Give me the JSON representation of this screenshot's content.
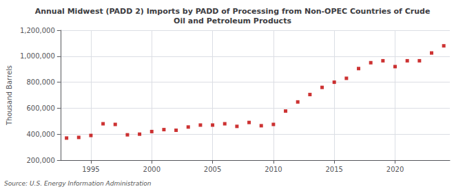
{
  "chart_data": {
    "type": "scatter",
    "title": "Annual Midwest (PADD 2) Imports by PADD of Processing from Non-OPEC Countries of Crude\nOil and Petroleum Products",
    "ylabel": "Thousand Barrels",
    "source": "Source: U.S. Energy Information Administration",
    "color": "#C00000",
    "marker": "square",
    "x": [
      1993,
      1994,
      1995,
      1996,
      1997,
      1998,
      1999,
      2000,
      2001,
      2002,
      2003,
      2004,
      2005,
      2006,
      2007,
      2008,
      2009,
      2010,
      2011,
      2012,
      2013,
      2014,
      2015,
      2016,
      2017,
      2018,
      2019,
      2020,
      2021,
      2022,
      2023,
      2024
    ],
    "values": [
      370000,
      375000,
      390000,
      480000,
      475000,
      395000,
      400000,
      420000,
      435000,
      430000,
      455000,
      470000,
      470000,
      480000,
      460000,
      490000,
      465000,
      475000,
      578000,
      648000,
      705000,
      760000,
      800000,
      830000,
      905000,
      950000,
      965000,
      920000,
      965000,
      965000,
      1025000,
      1080000
    ],
    "xlim": [
      1992.5,
      2024.5
    ],
    "xticks": [
      1995,
      2000,
      2005,
      2010,
      2015,
      2020
    ],
    "ylim": [
      200000,
      1200000
    ],
    "yticks": [
      {
        "value": 200000,
        "label": "200,000"
      },
      {
        "value": 400000,
        "label": "400,000"
      },
      {
        "value": 600000,
        "label": "600,000"
      },
      {
        "value": 800000,
        "label": "800,000"
      },
      {
        "value": 1000000,
        "label": "1,000,000"
      },
      {
        "value": 1200000,
        "label": "1,200,000"
      }
    ],
    "grid": true
  }
}
